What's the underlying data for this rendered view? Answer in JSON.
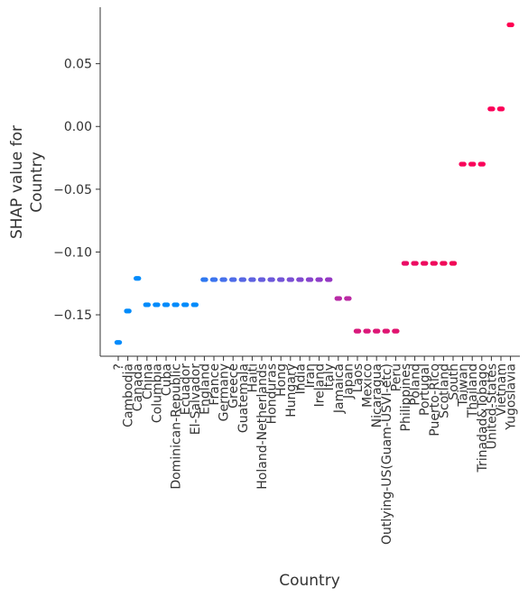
{
  "chart_data": {
    "type": "scatter",
    "title": "",
    "xlabel": "Country",
    "ylabel_lines": [
      "SHAP value for",
      "Country"
    ],
    "ylim": [
      -0.183,
      0.095
    ],
    "yticks": [
      0.05,
      0.0,
      -0.05,
      -0.1,
      -0.15
    ],
    "ytick_labels": [
      "0.05",
      "0.00",
      "−0.05",
      "−0.10",
      "−0.15"
    ],
    "colormap": [
      "#008bfb",
      "#7b4ad7",
      "#ff0052"
    ],
    "categories": [
      "?",
      "Cambodia",
      "Canada",
      "China",
      "Columbia",
      "Cuba",
      "Dominican-Republic",
      "Ecuador",
      "El-Salvador",
      "England",
      "France",
      "Germany",
      "Greece",
      "Guatemala",
      "Haiti",
      "Holand-Netherlands",
      "Honduras",
      "Hong",
      "Hungary",
      "India",
      "Iran",
      "Ireland",
      "Italy",
      "Jamaica",
      "Japan",
      "Laos",
      "Mexico",
      "Nicaragua",
      "Outlying-US(Guam-USVI-etc)",
      "Peru",
      "Philippines",
      "Poland",
      "Portugal",
      "Puerto-Rico",
      "Scotland",
      "South",
      "Taiwan",
      "Thailand",
      "Trinadad&Tobago",
      "United-States",
      "Vietnam",
      "Yugoslavia"
    ],
    "values": [
      -0.172,
      -0.147,
      -0.121,
      -0.142,
      -0.142,
      -0.142,
      -0.142,
      -0.142,
      -0.142,
      -0.122,
      -0.122,
      -0.122,
      -0.122,
      -0.122,
      -0.122,
      -0.122,
      -0.122,
      -0.122,
      -0.122,
      -0.122,
      -0.122,
      -0.122,
      -0.122,
      -0.137,
      -0.137,
      -0.163,
      -0.163,
      -0.163,
      -0.163,
      -0.163,
      -0.109,
      -0.109,
      -0.109,
      -0.109,
      -0.109,
      -0.109,
      -0.03,
      -0.03,
      -0.03,
      0.014,
      0.014,
      0.081
    ],
    "point_colors": [
      "#008bfb",
      "#008bfb",
      "#008bfb",
      "#008bfb",
      "#008bfb",
      "#008bfb",
      "#008bfb",
      "#008bfb",
      "#008bfb",
      "#2f78f0",
      "#3c74ee",
      "#4670eb",
      "#4f6ce8",
      "#5766e3",
      "#5e62e0",
      "#665ddd",
      "#6c58da",
      "#7354d7",
      "#7a4fd4",
      "#8048d0",
      "#8743cc",
      "#8e3dc8",
      "#9538c3",
      "#b82ba6",
      "#bb2aa3",
      "#d81a7c",
      "#db187a",
      "#dd1776",
      "#df1673",
      "#e11470",
      "#ea0d66",
      "#ec0c62",
      "#ed0b5f",
      "#ef0a5c",
      "#f00959",
      "#f10856",
      "#f8055a",
      "#f9045a",
      "#fa035a",
      "#fb0259",
      "#fc0158",
      "#ff0052"
    ]
  }
}
